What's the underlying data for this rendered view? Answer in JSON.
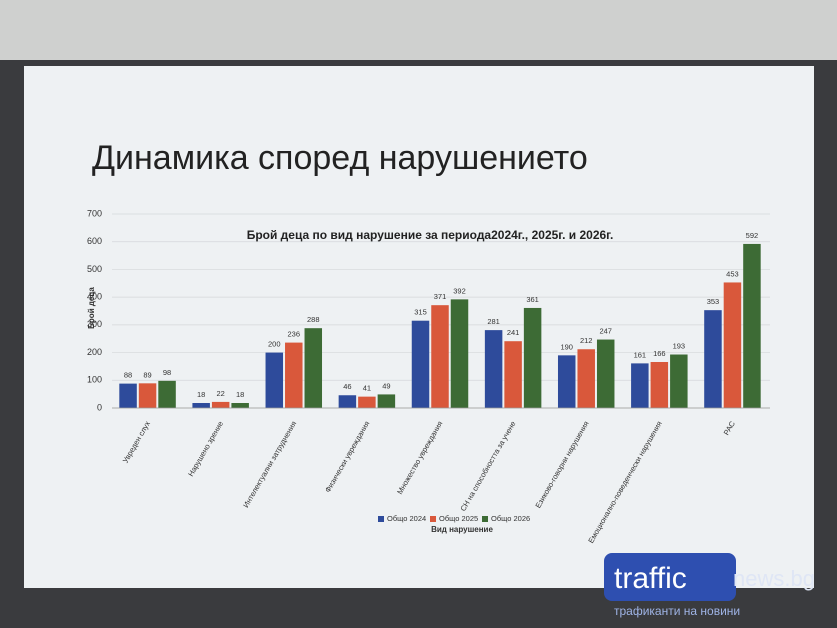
{
  "slide": {
    "title": "Динамика според нарушението"
  },
  "watermark": {
    "brand": "traffic",
    "suffix": "news.bg",
    "tagline": "трафиканти на новини"
  },
  "chart_data": {
    "type": "bar",
    "title": "Брой деца по вид нарушение за периода2024г., 2025г. и 2026г.",
    "y_label": "Брой деца",
    "x_label": "Вид нарушение",
    "categories": [
      "Увреден слух",
      "Нарушено зрение",
      "Интелектуални затруднения",
      "Физически увреждания",
      "Множество увреждания",
      "СН на способността за учене",
      "Езиково-говорни нарушения",
      "Емоционално-поведенчески нарушения",
      "РАС"
    ],
    "series": [
      {
        "name": "Общо 2024",
        "color": "#2e4b9b",
        "values": [
          88,
          18,
          200,
          46,
          315,
          281,
          190,
          161,
          353
        ]
      },
      {
        "name": "Общо 2025",
        "color": "#d9583b",
        "values": [
          89,
          22,
          236,
          41,
          371,
          241,
          212,
          166,
          453
        ]
      },
      {
        "name": "Общо 2026",
        "color": "#3d6b35",
        "values": [
          98,
          18,
          288,
          49,
          392,
          361,
          247,
          193,
          592
        ]
      }
    ],
    "ylim": [
      0,
      700
    ],
    "yticks": [
      0,
      100,
      200,
      300,
      400,
      500,
      600,
      700
    ],
    "grid": true,
    "legend": "bottom"
  }
}
